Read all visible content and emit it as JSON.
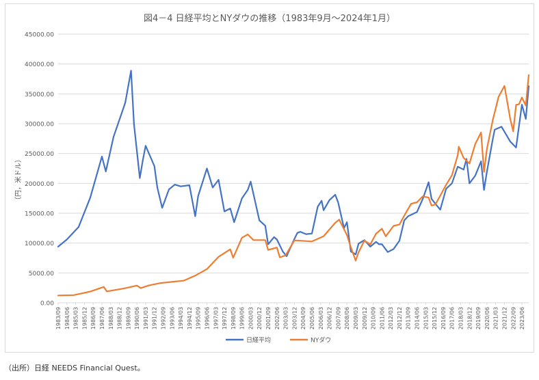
{
  "source_note": "（出所）日経 NEEDS Financial Quest。",
  "colors": {
    "nikkei": "#4472c4",
    "nydow": "#ed7d31",
    "grid": "#d9d9d9",
    "text": "#595959"
  },
  "chart_data": {
    "type": "line",
    "title": "図4－4 日経平均とNYダウの推移（1983年9月～2024年1月）",
    "xlabel": "",
    "ylabel": "（円，米ドル）",
    "ylim": [
      0,
      45000
    ],
    "y_ticks": [
      "0.00",
      "5000.00",
      "10000.00",
      "15000.00",
      "20000.00",
      "25000.00",
      "30000.00",
      "35000.00",
      "40000.00",
      "45000.00"
    ],
    "x_tick_labels": [
      "1983/09",
      "1984/06",
      "1985/03",
      "1985/12",
      "1986/09",
      "1987/06",
      "1988/03",
      "1988/12",
      "1989/09",
      "1990/06",
      "1991/03",
      "1991/12",
      "1992/09",
      "1993/06",
      "1994/03",
      "1994/12",
      "1995/09",
      "1996/06",
      "1997/03",
      "1997/12",
      "1998/09",
      "1999/06",
      "2000/03",
      "2000/12",
      "2001/09",
      "2002/06",
      "2003/03",
      "2003/12",
      "2004/09",
      "2005/06",
      "2006/03",
      "2006/12",
      "2007/09",
      "2008/06",
      "2009/03",
      "2009/12",
      "2010/09",
      "2011/06",
      "2012/03",
      "2012/12",
      "2013/09",
      "2014/06",
      "2015/03",
      "2015/12",
      "2016/09",
      "2017/06",
      "2018/03",
      "2018/12",
      "2019/09",
      "2020/06",
      "2021/03",
      "2021/12",
      "2022/09",
      "2023/06"
    ],
    "grid": true,
    "legend_position": "bottom",
    "x_range": [
      "1983/09",
      "2024/01"
    ],
    "series": [
      {
        "name": "日経平均",
        "color": "#4472c4",
        "x": [
          "1983/09",
          "1984/06",
          "1985/06",
          "1986/06",
          "1987/06",
          "1987/10",
          "1988/06",
          "1989/06",
          "1989/12",
          "1990/03",
          "1990/09",
          "1990/12",
          "1991/03",
          "1991/12",
          "1992/03",
          "1992/08",
          "1993/03",
          "1993/09",
          "1994/03",
          "1994/12",
          "1995/06",
          "1995/09",
          "1996/06",
          "1996/12",
          "1997/06",
          "1997/12",
          "1998/06",
          "1998/10",
          "1999/06",
          "1999/12",
          "2000/03",
          "2000/12",
          "2001/06",
          "2001/09",
          "2002/03",
          "2002/06",
          "2002/12",
          "2003/04",
          "2003/12",
          "2004/03",
          "2004/06",
          "2004/12",
          "2005/06",
          "2005/12",
          "2006/04",
          "2006/06",
          "2006/12",
          "2007/06",
          "2007/09",
          "2008/03",
          "2008/06",
          "2008/10",
          "2009/03",
          "2009/06",
          "2009/12",
          "2010/06",
          "2010/12",
          "2011/03",
          "2011/06",
          "2011/12",
          "2012/06",
          "2012/12",
          "2013/05",
          "2013/09",
          "2014/06",
          "2014/12",
          "2015/06",
          "2015/09",
          "2016/06",
          "2016/12",
          "2017/06",
          "2017/12",
          "2018/06",
          "2018/09",
          "2018/12",
          "2019/06",
          "2019/12",
          "2020/03",
          "2020/06",
          "2020/12",
          "2021/02",
          "2021/09",
          "2022/06",
          "2022/12",
          "2023/06",
          "2023/10",
          "2024/01"
        ],
        "values": [
          9400,
          10600,
          12700,
          17600,
          24500,
          22000,
          27800,
          33500,
          38900,
          29900,
          20900,
          23800,
          26300,
          22900,
          19300,
          15900,
          19000,
          19800,
          19500,
          19700,
          14500,
          17900,
          22500,
          19300,
          20600,
          15300,
          15800,
          13500,
          17500,
          18900,
          20300,
          13800,
          12900,
          9800,
          11000,
          10600,
          8600,
          7800,
          10700,
          11700,
          11900,
          11500,
          11600,
          16100,
          17100,
          15500,
          17200,
          18100,
          16800,
          12500,
          13500,
          8600,
          8100,
          9900,
          10500,
          9400,
          10200,
          9800,
          9800,
          8500,
          9000,
          10400,
          13800,
          14500,
          15200,
          17400,
          20200,
          17400,
          15600,
          19100,
          20000,
          22800,
          22300,
          24100,
          20000,
          21300,
          23700,
          18900,
          22000,
          27400,
          29000,
          29500,
          27000,
          26000,
          33200,
          30800,
          36300
        ]
      },
      {
        "name": "NYダウ",
        "color": "#ed7d31",
        "x": [
          "1983/09",
          "1985/01",
          "1986/06",
          "1987/08",
          "1987/11",
          "1988/06",
          "1989/06",
          "1990/06",
          "1990/10",
          "1991/06",
          "1992/06",
          "1993/06",
          "1994/06",
          "1995/06",
          "1996/06",
          "1997/06",
          "1998/06",
          "1998/09",
          "1999/06",
          "1999/12",
          "2000/06",
          "2001/06",
          "2001/09",
          "2002/06",
          "2002/09",
          "2003/03",
          "2003/12",
          "2004/06",
          "2005/06",
          "2006/06",
          "2007/06",
          "2007/10",
          "2008/06",
          "2008/10",
          "2009/03",
          "2009/06",
          "2009/12",
          "2010/06",
          "2010/12",
          "2011/06",
          "2011/10",
          "2012/06",
          "2012/12",
          "2013/06",
          "2013/12",
          "2014/06",
          "2014/12",
          "2015/06",
          "2015/09",
          "2016/01",
          "2016/06",
          "2016/12",
          "2017/06",
          "2017/12",
          "2018/01",
          "2018/06",
          "2018/12",
          "2019/06",
          "2019/12",
          "2020/03",
          "2020/06",
          "2020/12",
          "2021/06",
          "2021/12",
          "2022/06",
          "2022/09",
          "2022/12",
          "2023/03",
          "2023/06",
          "2023/10",
          "2024/01"
        ],
        "values": [
          1230,
          1280,
          1880,
          2660,
          1900,
          2100,
          2440,
          2880,
          2450,
          2900,
          3300,
          3500,
          3700,
          4550,
          5650,
          7700,
          8950,
          7550,
          10900,
          11450,
          10500,
          10500,
          8850,
          9250,
          7600,
          7950,
          10450,
          10400,
          10270,
          11150,
          13400,
          13930,
          11350,
          9300,
          7060,
          8450,
          10430,
          9770,
          11580,
          12410,
          11130,
          12880,
          13100,
          14900,
          16580,
          16830,
          17830,
          17620,
          16280,
          16470,
          17930,
          19760,
          21350,
          24720,
          26150,
          24270,
          23330,
          26600,
          28540,
          21900,
          25810,
          30600,
          34500,
          36330,
          30780,
          28730,
          33150,
          33270,
          34400,
          33050,
          38150
        ]
      }
    ]
  }
}
